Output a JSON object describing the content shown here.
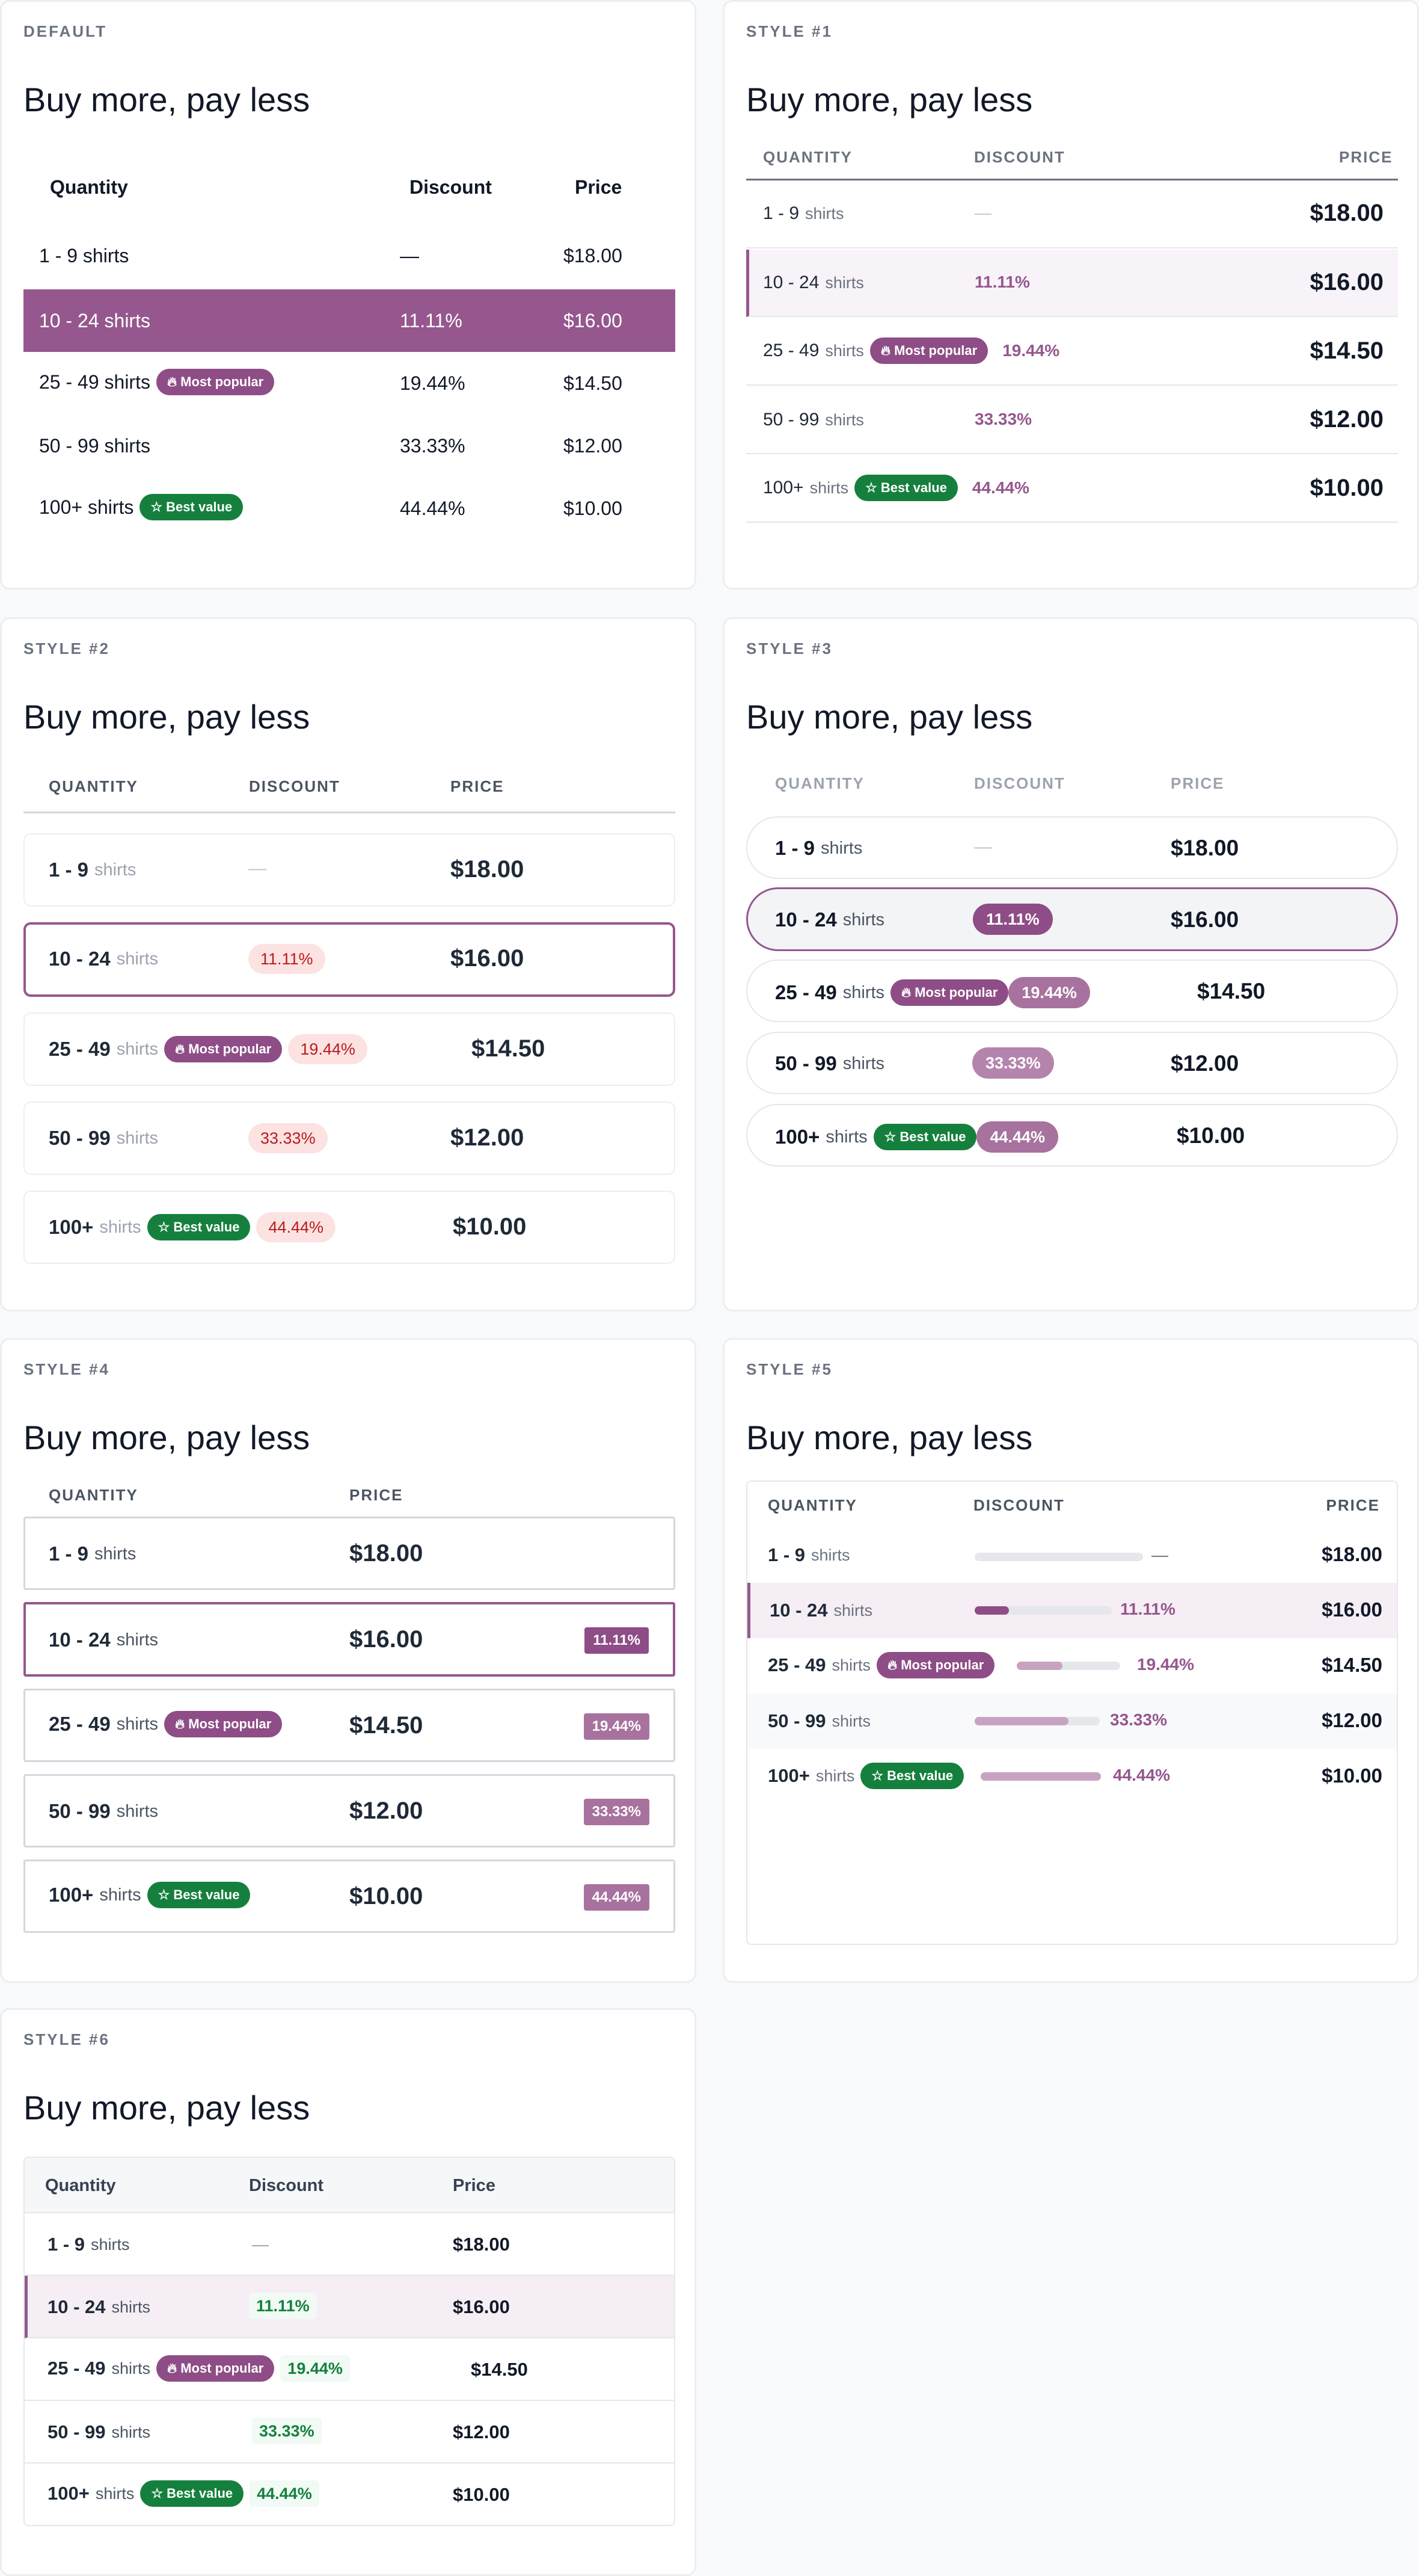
{
  "heading": "Buy more, pay less",
  "badges": {
    "popular": "Most popular",
    "best": "Best value"
  },
  "colors": {
    "accent": "#95578d",
    "accent_dark": "#8e4d86",
    "green": "#15803d",
    "red": "#b91c1c"
  },
  "default": {
    "label": "DEFAULT",
    "headers": [
      "Quantity",
      "Discount",
      "Price"
    ],
    "rows": [
      {
        "qty": "1 - 9 shirts",
        "disc": "—",
        "price": "$18.00"
      },
      {
        "qty": "10 - 24 shirts",
        "disc": "11.11%",
        "price": "$16.00"
      },
      {
        "qty": "25 - 49 shirts",
        "disc": "19.44%",
        "price": "$14.50"
      },
      {
        "qty": "50 - 99 shirts",
        "disc": "33.33%",
        "price": "$12.00"
      },
      {
        "qty": "100+ shirts",
        "disc": "44.44%",
        "price": "$10.00"
      }
    ]
  },
  "s1": {
    "label": "STYLE #1",
    "headers": [
      "QUANTITY",
      "DISCOUNT",
      "PRICE"
    ],
    "rows": [
      {
        "qty": "1 - 9",
        "unit": "shirts",
        "disc": "—",
        "price": "$18.00"
      },
      {
        "qty": "10 - 24",
        "unit": "shirts",
        "disc": "11.11%",
        "price": "$16.00"
      },
      {
        "qty": "25 - 49",
        "unit": "shirts",
        "disc": "19.44%",
        "price": "$14.50"
      },
      {
        "qty": "50 - 99",
        "unit": "shirts",
        "disc": "33.33%",
        "price": "$12.00"
      },
      {
        "qty": "100+",
        "unit": "shirts",
        "disc": "44.44%",
        "price": "$10.00"
      }
    ]
  },
  "s2": {
    "label": "STYLE #2",
    "headers": [
      "QUANTITY",
      "DISCOUNT",
      "PRICE"
    ],
    "rows": [
      {
        "qty": "1 - 9",
        "unit": "shirts",
        "disc": "—",
        "price": "$18.00"
      },
      {
        "qty": "10 - 24",
        "unit": "shirts",
        "disc": "11.11%",
        "price": "$16.00"
      },
      {
        "qty": "25 - 49",
        "unit": "shirts",
        "disc": "19.44%",
        "price": "$14.50"
      },
      {
        "qty": "50 - 99",
        "unit": "shirts",
        "disc": "33.33%",
        "price": "$12.00"
      },
      {
        "qty": "100+",
        "unit": "shirts",
        "disc": "44.44%",
        "price": "$10.00"
      }
    ]
  },
  "s3": {
    "label": "STYLE #3",
    "headers": [
      "QUANTITY",
      "DISCOUNT",
      "PRICE"
    ],
    "rows": [
      {
        "qty": "1 - 9",
        "unit": "shirts",
        "disc": "—",
        "price": "$18.00"
      },
      {
        "qty": "10 - 24",
        "unit": "shirts",
        "disc": "11.11%",
        "price": "$16.00"
      },
      {
        "qty": "25 - 49",
        "unit": "shirts",
        "disc": "19.44%",
        "price": "$14.50"
      },
      {
        "qty": "50 - 99",
        "unit": "shirts",
        "disc": "33.33%",
        "price": "$12.00"
      },
      {
        "qty": "100+",
        "unit": "shirts",
        "disc": "44.44%",
        "price": "$10.00"
      }
    ]
  },
  "s4": {
    "label": "STYLE #4",
    "headers": [
      "QUANTITY",
      "PRICE"
    ],
    "rows": [
      {
        "qty": "1 - 9",
        "unit": "shirts",
        "price": "$18.00"
      },
      {
        "qty": "10 - 24",
        "unit": "shirts",
        "disc": "11.11%",
        "price": "$16.00"
      },
      {
        "qty": "25 - 49",
        "unit": "shirts",
        "disc": "19.44%",
        "price": "$14.50"
      },
      {
        "qty": "50 - 99",
        "unit": "shirts",
        "disc": "33.33%",
        "price": "$12.00"
      },
      {
        "qty": "100+",
        "unit": "shirts",
        "disc": "44.44%",
        "price": "$10.00"
      }
    ]
  },
  "s5": {
    "label": "STYLE #5",
    "headers": [
      "QUANTITY",
      "DISCOUNT",
      "PRICE"
    ],
    "rows": [
      {
        "qty": "1 - 9",
        "unit": "shirts",
        "disc": "—",
        "price": "$18.00",
        "bar_fill": 0
      },
      {
        "qty": "10 - 24",
        "unit": "shirts",
        "disc": "11.11%",
        "price": "$16.00",
        "bar_fill": 0.25
      },
      {
        "qty": "25 - 49",
        "unit": "shirts",
        "disc": "19.44%",
        "price": "$14.50",
        "bar_fill": 0.44
      },
      {
        "qty": "50 - 99",
        "unit": "shirts",
        "disc": "33.33%",
        "price": "$12.00",
        "bar_fill": 0.75
      },
      {
        "qty": "100+",
        "unit": "shirts",
        "disc": "44.44%",
        "price": "$10.00",
        "bar_fill": 1.0
      }
    ]
  },
  "s6": {
    "label": "STYLE #6",
    "headers": [
      "Quantity",
      "Discount",
      "Price"
    ],
    "rows": [
      {
        "qty": "1 - 9",
        "unit": "shirts",
        "disc": "—",
        "price": "$18.00"
      },
      {
        "qty": "10 - 24",
        "unit": "shirts",
        "disc": "11.11%",
        "price": "$16.00"
      },
      {
        "qty": "25 - 49",
        "unit": "shirts",
        "disc": "19.44%",
        "price": "$14.50"
      },
      {
        "qty": "50 - 99",
        "unit": "shirts",
        "disc": "33.33%",
        "price": "$12.00"
      },
      {
        "qty": "100+",
        "unit": "shirts",
        "disc": "44.44%",
        "price": "$10.00"
      }
    ]
  }
}
